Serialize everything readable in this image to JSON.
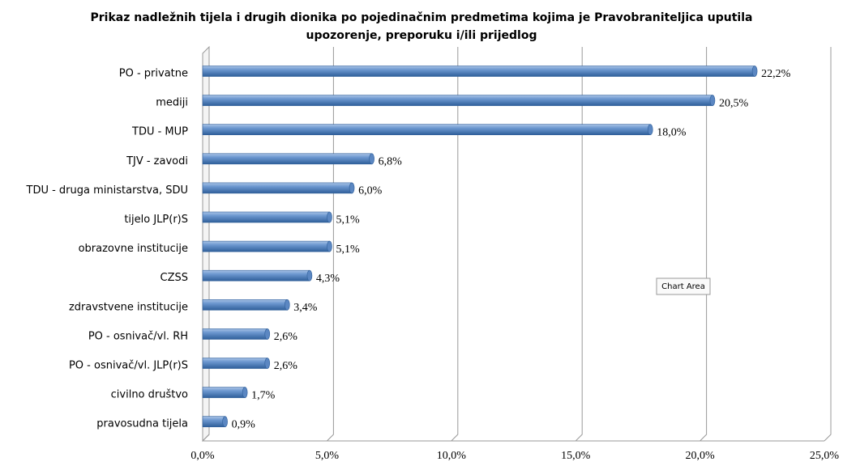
{
  "chart_data": {
    "type": "bar",
    "orientation": "horizontal",
    "title": "Prikaz nadležnih tijela i drugih dionika po pojedinačnim predmetima kojima je Pravobraniteljica  uputila",
    "subtitle": "upozorenje, preporuku  i/ili prijedlog",
    "categories": [
      "PO - privatne",
      "mediji",
      "TDU - MUP",
      "TJV - zavodi",
      "TDU - druga ministarstva, SDU",
      "tijelo JLP(r)S",
      "obrazovne institucije",
      "CZSS",
      "zdravstvene institucije",
      "PO - osnivač/vl. RH",
      "PO - osnivač/vl. JLP(r)S",
      "civilno društvo",
      "pravosudna tijela"
    ],
    "values": [
      22.2,
      20.5,
      18.0,
      6.8,
      6.0,
      5.1,
      5.1,
      4.3,
      3.4,
      2.6,
      2.6,
      1.7,
      0.9
    ],
    "value_labels": [
      "22,2%",
      "20,5%",
      "18,0%",
      "6,8%",
      "6,0%",
      "5,1%",
      "5,1%",
      "4,3%",
      "3,4%",
      "2,6%",
      "2,6%",
      "1,7%",
      "0,9%"
    ],
    "color": "#4f81bd",
    "xlim": [
      0,
      25
    ],
    "xticks": [
      {
        "value": 0,
        "label": "0,0%"
      },
      {
        "value": 5,
        "label": "5,0%"
      },
      {
        "value": 10,
        "label": "10,0%"
      },
      {
        "value": 15,
        "label": "15,0%"
      },
      {
        "value": 20,
        "label": "20,0%"
      },
      {
        "value": 25,
        "label": "25,0%"
      }
    ],
    "grid": true,
    "annotation": "Chart Area"
  }
}
